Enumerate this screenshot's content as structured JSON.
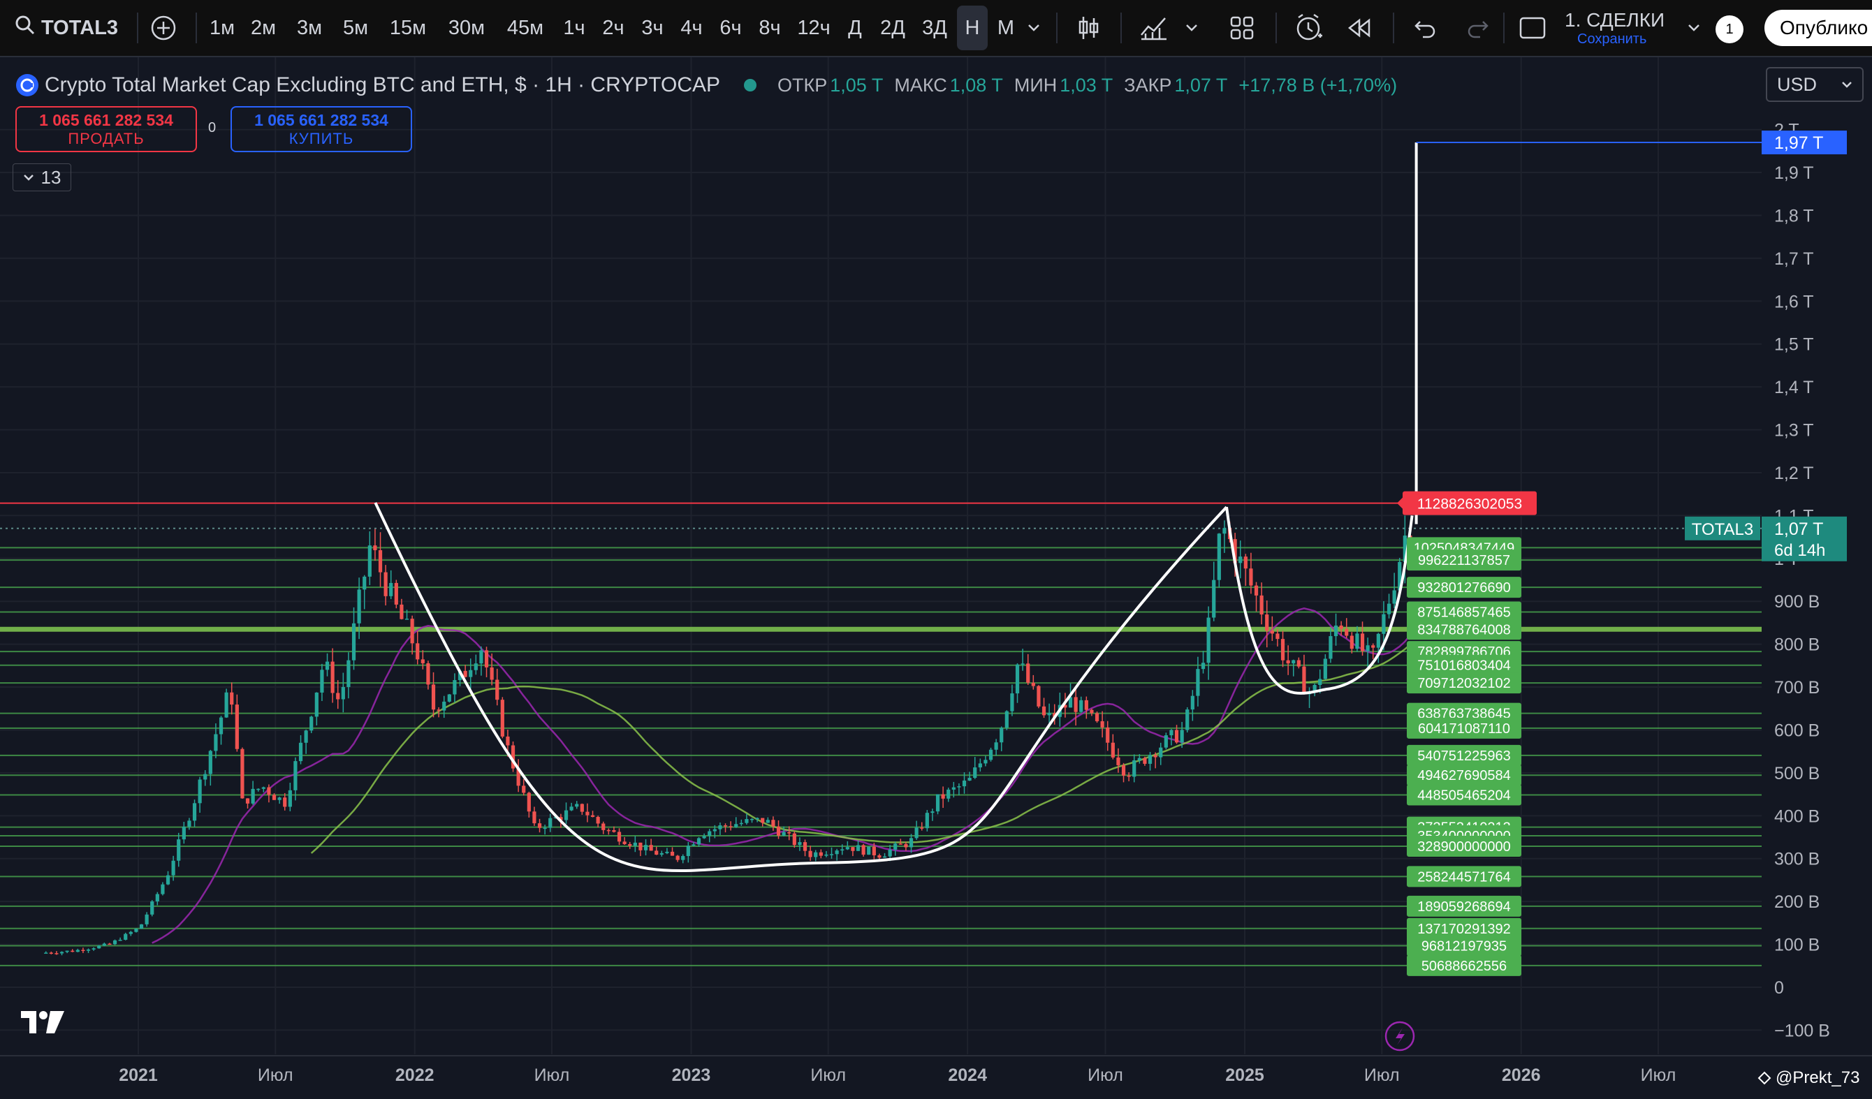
{
  "toolbar": {
    "symbol": "TOTAL3",
    "timeframes": [
      "1м",
      "2м",
      "3м",
      "5м",
      "15м",
      "30м",
      "45м",
      "1ч",
      "2ч",
      "3ч",
      "4ч",
      "6ч",
      "8ч",
      "12ч",
      "Д",
      "2Д",
      "3Д",
      "Н",
      "М"
    ],
    "active_timeframe": "Н",
    "trades_title": "1. СДЕЛКИ",
    "trades_save": "Сохранить",
    "notification_count": "1",
    "publish_label": "Опублико"
  },
  "legend": {
    "title": "Crypto Total Market Cap Excluding BTC and ETH, $ · 1H · CRYPTOCAP",
    "open_label": "ОТКР",
    "open_value": "1,05 T",
    "high_label": "МАКС",
    "high_value": "1,08 T",
    "low_label": "МИН",
    "low_value": "1,03 T",
    "close_label": "ЗАКР",
    "close_value": "1,07 T",
    "change": "+17,78 B (+1,70%)"
  },
  "order_panel": {
    "sell_price": "1 065 661 282 534",
    "sell_label": "ПРОДАТЬ",
    "spread": "0",
    "buy_price": "1 065 661 282 534",
    "buy_label": "КУПИТЬ"
  },
  "indicator_count": "13",
  "currency": "USD",
  "credit": "@Prekt_73",
  "colors": {
    "background": "#131722",
    "up": "#26a69a",
    "down": "#ef5350",
    "resistance": "#f23645",
    "level": "#4caf50",
    "ma_short": "#9c27b0",
    "ma_long": "#8bc34a",
    "target": "#2962ff"
  },
  "chart_data": {
    "type": "candlestick",
    "y_unit": "USD",
    "ylim": [
      -100000000000,
      2000000000000
    ],
    "y_tick_labels": [
      "2 T",
      "1,9 T",
      "1,8 T",
      "1,7 T",
      "1,6 T",
      "1,5 T",
      "1,4 T",
      "1,3 T",
      "1,2 T",
      "1,1 T",
      "1 T",
      "900 B",
      "800 B",
      "700 B",
      "600 B",
      "500 B",
      "400 B",
      "300 B",
      "200 B",
      "100 B",
      "0",
      "−100 B"
    ],
    "y_tick_values": [
      2000,
      1900,
      1800,
      1700,
      1600,
      1500,
      1400,
      1300,
      1200,
      1100,
      1000,
      900,
      800,
      700,
      600,
      500,
      400,
      300,
      200,
      100,
      0,
      -100
    ],
    "x_tick_labels": [
      "2021",
      "Июл",
      "2022",
      "Июл",
      "2023",
      "Июл",
      "2024",
      "Июл",
      "2025",
      "Июл",
      "2026",
      "Июл"
    ],
    "x_tick_dates": [
      "2021-01-01",
      "2021-07-01",
      "2022-01-01",
      "2022-07-01",
      "2023-01-01",
      "2023-07-01",
      "2024-01-01",
      "2024-07-01",
      "2025-01-01",
      "2025-07-01",
      "2026-01-01",
      "2026-07-01"
    ],
    "x_bold": [
      true,
      false,
      true,
      false,
      true,
      false,
      true,
      false,
      true,
      false,
      true,
      false
    ],
    "price_path": [
      [
        "2020-09-01",
        80
      ],
      [
        "2020-10-15",
        85
      ],
      [
        "2020-12-01",
        100
      ],
      [
        "2021-01-10",
        140
      ],
      [
        "2021-02-15",
        260
      ],
      [
        "2021-03-20",
        420
      ],
      [
        "2021-05-10",
        700
      ],
      [
        "2021-05-25",
        430
      ],
      [
        "2021-06-20",
        470
      ],
      [
        "2021-07-20",
        430
      ],
      [
        "2021-08-20",
        620
      ],
      [
        "2021-09-10",
        760
      ],
      [
        "2021-10-01",
        660
      ],
      [
        "2021-11-10",
        1030
      ],
      [
        "2021-12-15",
        880
      ],
      [
        "2022-01-10",
        790
      ],
      [
        "2022-02-01",
        650
      ],
      [
        "2022-03-10",
        720
      ],
      [
        "2022-04-05",
        800
      ],
      [
        "2022-05-10",
        560
      ],
      [
        "2022-06-15",
        370
      ],
      [
        "2022-07-20",
        400
      ],
      [
        "2022-08-15",
        420
      ],
      [
        "2022-09-15",
        370
      ],
      [
        "2022-11-10",
        320
      ],
      [
        "2022-12-20",
        300
      ],
      [
        "2023-01-20",
        360
      ],
      [
        "2023-03-01",
        380
      ],
      [
        "2023-04-15",
        390
      ],
      [
        "2023-06-15",
        310
      ],
      [
        "2023-08-01",
        330
      ],
      [
        "2023-09-15",
        310
      ],
      [
        "2023-10-25",
        340
      ],
      [
        "2023-12-01",
        440
      ],
      [
        "2024-01-10",
        480
      ],
      [
        "2024-02-20",
        600
      ],
      [
        "2024-03-15",
        760
      ],
      [
        "2024-04-20",
        620
      ],
      [
        "2024-05-25",
        670
      ],
      [
        "2024-07-01",
        600
      ],
      [
        "2024-08-05",
        500
      ],
      [
        "2024-09-15",
        560
      ],
      [
        "2024-10-20",
        600
      ],
      [
        "2024-11-20",
        820
      ],
      [
        "2024-12-08",
        1080
      ],
      [
        "2025-01-05",
        980
      ],
      [
        "2025-02-05",
        860
      ],
      [
        "2025-03-05",
        760
      ],
      [
        "2025-04-08",
        680
      ],
      [
        "2025-05-12",
        860
      ],
      [
        "2025-06-05",
        800
      ],
      [
        "2025-06-25",
        760
      ],
      [
        "2025-07-20",
        920
      ],
      [
        "2025-08-10",
        1070
      ]
    ],
    "levels": [
      1025048347449,
      996221137857,
      932801276690,
      875146857465,
      834788764008,
      782899786706,
      751016803404,
      709712032102,
      638763738645,
      604171087110,
      540751225963,
      494627690584,
      448505465204,
      373553410213,
      353400000000,
      328900000000,
      258244571764,
      189059268694,
      137170291392,
      96812197935,
      50688662556
    ],
    "level_labels": [
      "1025048347449",
      "996221137857",
      "932801276690",
      "875146857465",
      "834788764008",
      "782899786706",
      "751016803404",
      "709712032102",
      "638763738645",
      "604171087110",
      "540751225963",
      "494627690584",
      "448505465204",
      "373553410213",
      "353400000000",
      "328900000000",
      "258244571764",
      "189059268694",
      "137170291392",
      "96812197935",
      "50688662556"
    ],
    "resistance_level": 1128826302053,
    "resistance_label": "1128826302053",
    "target_label": "1,97 T",
    "target_value": 1970,
    "current_symbol": "TOTAL3",
    "current_label": "1,07 T",
    "current_value": 1070,
    "countdown": "6d 14h"
  }
}
